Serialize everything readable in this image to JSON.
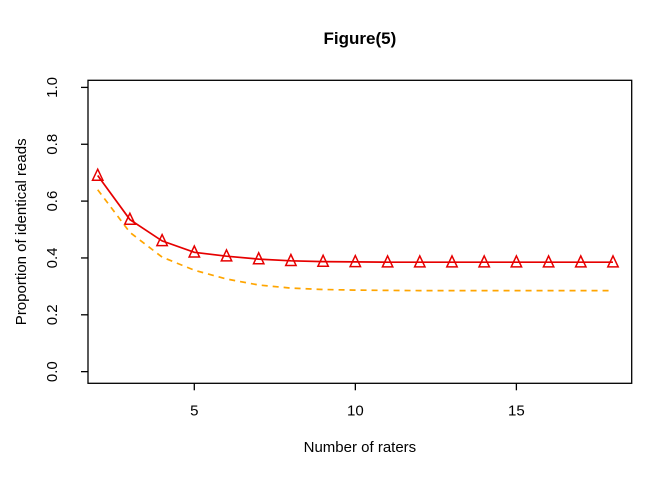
{
  "chart_data": {
    "type": "line",
    "title": "Figure(5)",
    "xlabel": "Number of raters",
    "ylabel": "Proportion of identical reads",
    "x_tick_labels": [
      "5",
      "10",
      "15"
    ],
    "x_tick_values": [
      5,
      10,
      15
    ],
    "y_tick_labels": [
      "0.0",
      "0.2",
      "0.4",
      "0.6",
      "0.8",
      "1.0"
    ],
    "y_tick_values": [
      0.0,
      0.2,
      0.4,
      0.6,
      0.8,
      1.0
    ],
    "xlim": [
      1.7,
      18.58
    ],
    "ylim": [
      -0.041,
      1.025
    ],
    "grid": false,
    "legend": "none",
    "box_color": "#000000",
    "background": "#ffffff",
    "x": [
      2,
      3,
      4,
      5,
      6,
      7,
      8,
      9,
      10,
      11,
      12,
      13,
      14,
      15,
      16,
      17,
      18
    ],
    "series": [
      {
        "name": "red-solid-triangle-line",
        "color": "#e60000",
        "style": "solid",
        "marker": "triangle-open",
        "values": [
          0.69,
          0.535,
          0.46,
          0.42,
          0.406,
          0.396,
          0.39,
          0.387,
          0.386,
          0.385,
          0.385,
          0.385,
          0.385,
          0.385,
          0.385,
          0.385,
          0.385
        ]
      },
      {
        "name": "orange-dashed-line",
        "color": "#ffa500",
        "style": "dashed",
        "marker": "none",
        "values": [
          0.64,
          0.49,
          0.403,
          0.357,
          0.326,
          0.305,
          0.294,
          0.289,
          0.287,
          0.286,
          0.285,
          0.285,
          0.285,
          0.285,
          0.285,
          0.285,
          0.285
        ]
      }
    ]
  }
}
